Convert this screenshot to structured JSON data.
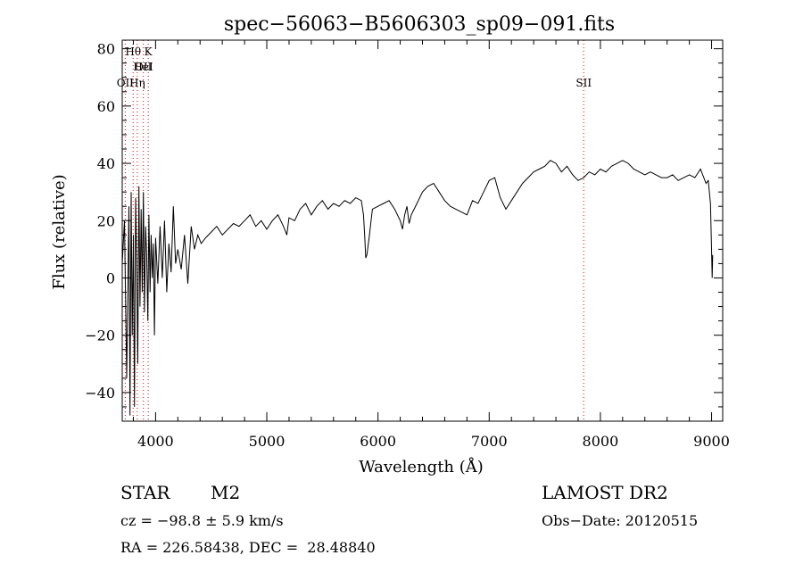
{
  "chart_data": {
    "type": "line",
    "title": "spec−56063−B5606303_sp09−091.fits",
    "xlabel": "Wavelength (Å)",
    "ylabel": "Flux (relative)",
    "xlim": [
      3700,
      9100
    ],
    "ylim": [
      -50,
      83
    ],
    "x_ticks": [
      4000,
      5000,
      6000,
      7000,
      8000,
      9000
    ],
    "x_tick_labels": [
      "4000",
      "5000",
      "6000",
      "7000",
      "8000",
      "9000"
    ],
    "y_ticks": [
      -40,
      -20,
      0,
      20,
      40,
      60,
      80
    ],
    "y_tick_labels": [
      "−40",
      "−20",
      "0",
      "20",
      "40",
      "60",
      "80"
    ],
    "grid": false,
    "series": [
      {
        "x": [
          3700,
          3720,
          3740,
          3760,
          3770,
          3780,
          3790,
          3800,
          3810,
          3820,
          3830,
          3840,
          3850,
          3860,
          3870,
          3880,
          3890,
          3900,
          3910,
          3920,
          3930,
          3940,
          3950,
          3960,
          3970,
          3980,
          3990,
          4000,
          4020,
          4040,
          4060,
          4080,
          4100,
          4120,
          4140,
          4160,
          4180,
          4200,
          4230,
          4260,
          4290,
          4320,
          4350,
          4380,
          4410,
          4450,
          4500,
          4550,
          4600,
          4650,
          4700,
          4750,
          4800,
          4850,
          4900,
          4950,
          5000,
          5050,
          5100,
          5150,
          5180,
          5200,
          5250,
          5300,
          5350,
          5400,
          5450,
          5500,
          5550,
          5600,
          5650,
          5700,
          5750,
          5800,
          5850,
          5870,
          5880,
          5890,
          5900,
          5920,
          5950,
          6000,
          6050,
          6100,
          6150,
          6200,
          6220,
          6240,
          6260,
          6280,
          6300,
          6350,
          6400,
          6450,
          6500,
          6550,
          6600,
          6650,
          6700,
          6750,
          6800,
          6850,
          6900,
          6950,
          7000,
          7050,
          7100,
          7150,
          7200,
          7250,
          7300,
          7350,
          7400,
          7450,
          7500,
          7550,
          7600,
          7650,
          7700,
          7750,
          7800,
          7850,
          7900,
          7950,
          8000,
          8050,
          8100,
          8150,
          8200,
          8250,
          8300,
          8350,
          8400,
          8450,
          8500,
          8550,
          8600,
          8650,
          8700,
          8750,
          8800,
          8850,
          8900,
          8950,
          8970,
          8990,
          9000,
          9005,
          9010
        ],
        "y": [
          5,
          20,
          -35,
          25,
          -48,
          30,
          -20,
          15,
          -45,
          28,
          5,
          -30,
          32,
          -10,
          24,
          -5,
          30,
          -12,
          18,
          8,
          -15,
          22,
          -5,
          15,
          0,
          12,
          -20,
          14,
          -2,
          18,
          0,
          20,
          -5,
          12,
          2,
          25,
          5,
          10,
          3,
          15,
          -2,
          18,
          10,
          15,
          12,
          14,
          16,
          18,
          15,
          17,
          19,
          18,
          20,
          22,
          18,
          20,
          17,
          20,
          22,
          18,
          15,
          21,
          20,
          24,
          26,
          22,
          25,
          27,
          24,
          26,
          25,
          27,
          26,
          28,
          27,
          22,
          15,
          7,
          8,
          14,
          24,
          25,
          26,
          27,
          24,
          20,
          17,
          22,
          25,
          19,
          22,
          26,
          30,
          32,
          33,
          30,
          27,
          25,
          24,
          23,
          22,
          27,
          26,
          30,
          34,
          35,
          28,
          24,
          27,
          30,
          33,
          35,
          37,
          38,
          39,
          41,
          40,
          37,
          39,
          36,
          34,
          35,
          37,
          36,
          38,
          37,
          39,
          40,
          41,
          40,
          38,
          37,
          36,
          37,
          36,
          35,
          35,
          36,
          34,
          35,
          36,
          35,
          38,
          33,
          34,
          26,
          10,
          0,
          8
        ]
      }
    ],
    "line_markers": [
      {
        "label": "OII",
        "x": 3727,
        "row": 3
      },
      {
        "label": "Hθ",
        "x": 3798,
        "row": 1
      },
      {
        "label": "K",
        "x": 3934,
        "row": 1
      },
      {
        "label": "OII",
        "x": 3890,
        "row": 2
      },
      {
        "label": "HeI",
        "x": 3889,
        "row": 2
      },
      {
        "label": "Hη",
        "x": 3835,
        "row": 3
      },
      {
        "label": "SII",
        "x": 7850,
        "row": 3
      }
    ],
    "marker_color": "#e00000"
  },
  "footer": {
    "class_label": "STAR",
    "subclass": "M2",
    "survey": "LAMOST DR2",
    "cz": "cz = −98.8 ± 5.9 km/s",
    "obs_date": "Obs−Date: 20120515",
    "coords": "RA = 226.58438, DEC =  28.48840"
  }
}
